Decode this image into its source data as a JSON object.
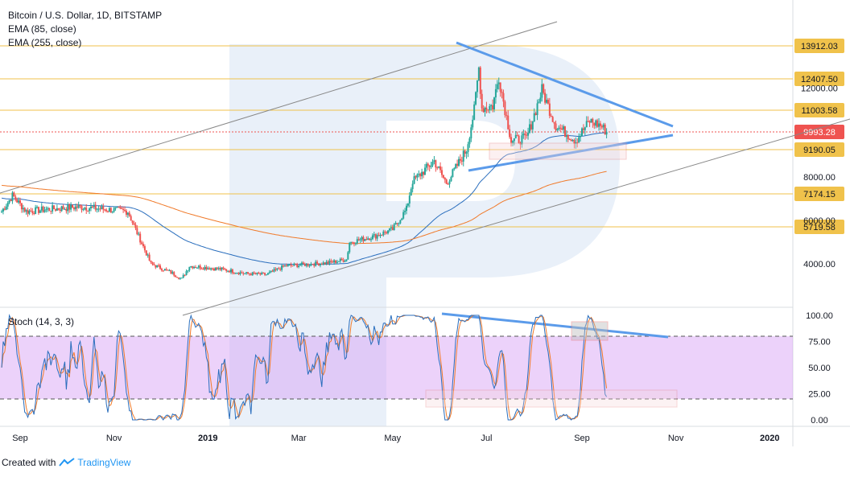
{
  "chart_data": {
    "type": "candlestick",
    "title": "Bitcoin / U.S. Dollar, 1D, BITSTAMP",
    "indicators": [
      "EMA (85, close)",
      "EMA (255, close)"
    ],
    "price_axis_ticks": [
      "12000.00",
      "8000.00",
      "6000.00",
      "4000.00"
    ],
    "price_levels": [
      {
        "value": "13912.03",
        "price": 13912.03
      },
      {
        "value": "12407.50",
        "price": 12407.5
      },
      {
        "value": "11003.58",
        "price": 11003.58
      },
      {
        "value": "9190.05",
        "price": 9190.05
      },
      {
        "value": "7174.15",
        "price": 7174.15
      },
      {
        "value": "5719.58",
        "price": 5719.58
      }
    ],
    "current_price": {
      "value": "9993.28",
      "price": 9993.28,
      "color": "#ef5350"
    },
    "level_color": "#f0c24b",
    "ema85_color": "#2a6ebd",
    "ema255_color": "#f07a2a",
    "up_color": "#26a69a",
    "down_color": "#ef5350",
    "trendline_color": "#5b9bea",
    "x_ticks": [
      "Sep",
      "Nov",
      "2019",
      "Mar",
      "May",
      "Jul",
      "Sep",
      "Nov",
      "2020"
    ],
    "price_anchors": [
      [
        "2018-08-20",
        6400
      ],
      [
        "2018-08-27",
        7100
      ],
      [
        "2018-09-05",
        6400
      ],
      [
        "2018-09-20",
        6500
      ],
      [
        "2018-10-10",
        6600
      ],
      [
        "2018-11-10",
        6400
      ],
      [
        "2018-11-20",
        4800
      ],
      [
        "2018-11-25",
        4000
      ],
      [
        "2018-12-08",
        3600
      ],
      [
        "2018-12-15",
        3300
      ],
      [
        "2018-12-20",
        3900
      ],
      [
        "2019-01-10",
        3750
      ],
      [
        "2019-01-25",
        3550
      ],
      [
        "2019-02-08",
        3500
      ],
      [
        "2019-02-20",
        3900
      ],
      [
        "2019-03-20",
        4050
      ],
      [
        "2019-04-01",
        4200
      ],
      [
        "2019-04-03",
        5000
      ],
      [
        "2019-04-20",
        5300
      ],
      [
        "2019-05-01",
        5600
      ],
      [
        "2019-05-10",
        6500
      ],
      [
        "2019-05-14",
        7800
      ],
      [
        "2019-05-28",
        8700
      ],
      [
        "2019-06-05",
        7700
      ],
      [
        "2019-06-18",
        9200
      ],
      [
        "2019-06-23",
        11000
      ],
      [
        "2019-06-26",
        12900
      ],
      [
        "2019-06-28",
        11100
      ],
      [
        "2019-07-05",
        11200
      ],
      [
        "2019-07-09",
        12500
      ],
      [
        "2019-07-17",
        9600
      ],
      [
        "2019-07-27",
        9700
      ],
      [
        "2019-08-06",
        11900
      ],
      [
        "2019-08-15",
        10300
      ],
      [
        "2019-08-28",
        9600
      ],
      [
        "2019-09-06",
        10500
      ],
      [
        "2019-09-13",
        10300
      ],
      [
        "2019-09-17",
        10000
      ]
    ],
    "stoch": {
      "label": "Stoch (14, 3, 3)",
      "ticks": [
        "100.00",
        "75.00",
        "50.00",
        "25.00",
        "0.00"
      ],
      "band": [
        20,
        80
      ],
      "band_color": "#d49cf5",
      "k_color": "#2a6ebd",
      "d_color": "#f07a2a"
    },
    "annotations": {
      "support_box": "red rectangle near 9190.05 level",
      "stoch_top_box": "grey rectangle near 90 stoch",
      "stoch_bottom_box": "red rectangle near 20 stoch"
    }
  },
  "footer": {
    "created_with": "Created with",
    "brand": "TradingView"
  }
}
